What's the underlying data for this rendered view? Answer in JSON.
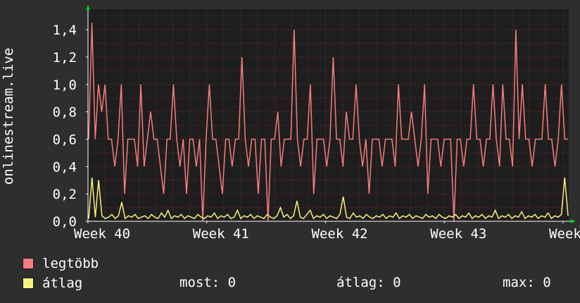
{
  "colors": {
    "background": "#2e2e2e",
    "plot_background": "#1e1e1e",
    "grid": "#7a2a2a",
    "axis_arrow": "#00cc00",
    "series_max": "#f47d7d",
    "series_avg": "#f4f47d"
  },
  "chart_data": {
    "type": "line",
    "title": "",
    "xlabel": "",
    "ylabel": "onlinestream.live",
    "ylim": [
      0,
      1.55
    ],
    "yticks": [
      "0,0",
      "0,2",
      "0,4",
      "0,6",
      "0,8",
      "1,0",
      "1,2",
      "1,4"
    ],
    "xticks": [
      "Week 40",
      "Week 41",
      "Week 42",
      "Week 43",
      "Week 44"
    ],
    "series": [
      {
        "name": "legtöbb",
        "color": "#f47d7d",
        "values": [
          0.6,
          1.45,
          0.6,
          1.0,
          0.8,
          1.0,
          0.6,
          0.6,
          0.4,
          0.6,
          1.0,
          0.2,
          0.6,
          0.6,
          0.6,
          0.4,
          1.0,
          0.4,
          0.6,
          0.8,
          0.6,
          0.6,
          0.4,
          0.2,
          0.6,
          0.6,
          1.0,
          0.6,
          0.4,
          0.6,
          0.2,
          0.6,
          0.6,
          0.4,
          0.6,
          0.0,
          0.6,
          1.0,
          0.6,
          0.6,
          0.4,
          0.2,
          0.6,
          0.6,
          0.4,
          0.6,
          0.6,
          1.2,
          0.6,
          0.4,
          0.6,
          0.6,
          0.2,
          0.6,
          0.6,
          0.0,
          0.6,
          0.6,
          0.8,
          0.4,
          0.6,
          0.6,
          0.6,
          1.4,
          0.6,
          0.4,
          0.6,
          0.6,
          1.0,
          0.2,
          0.6,
          0.6,
          0.6,
          0.4,
          0.6,
          1.2,
          0.6,
          0.6,
          0.4,
          0.8,
          0.6,
          0.6,
          1.0,
          0.6,
          0.4,
          0.6,
          0.2,
          0.6,
          0.6,
          0.6,
          0.4,
          0.6,
          0.6,
          0.6,
          0.4,
          1.0,
          0.6,
          0.6,
          0.6,
          0.8,
          0.6,
          0.4,
          0.6,
          1.0,
          0.2,
          0.6,
          0.6,
          0.6,
          0.4,
          0.6,
          0.6,
          0.6,
          0.0,
          0.6,
          0.6,
          0.4,
          0.6,
          0.6,
          1.0,
          0.6,
          0.6,
          0.4,
          0.6,
          0.6,
          1.0,
          0.6,
          0.4,
          1.0,
          0.6,
          0.6,
          0.4,
          1.4,
          0.6,
          1.0,
          0.6,
          0.6,
          0.4,
          0.6,
          0.6,
          0.6,
          1.0,
          0.6,
          0.6,
          0.4,
          0.6,
          1.0,
          0.6,
          0.6
        ]
      },
      {
        "name": "átlag",
        "color": "#f4f47d",
        "values": [
          0.02,
          0.32,
          0.03,
          0.3,
          0.04,
          0.02,
          0.03,
          0.05,
          0.02,
          0.04,
          0.14,
          0.02,
          0.04,
          0.03,
          0.05,
          0.02,
          0.03,
          0.04,
          0.02,
          0.05,
          0.03,
          0.02,
          0.06,
          0.03,
          0.08,
          0.02,
          0.04,
          0.03,
          0.05,
          0.02,
          0.04,
          0.03,
          0.02,
          0.05,
          0.03,
          0.02,
          0.04,
          0.03,
          0.06,
          0.02,
          0.04,
          0.03,
          0.05,
          0.02,
          0.03,
          0.08,
          0.02,
          0.04,
          0.03,
          0.05,
          0.02,
          0.04,
          0.03,
          0.02,
          0.05,
          0.03,
          0.02,
          0.04,
          0.1,
          0.03,
          0.05,
          0.02,
          0.04,
          0.15,
          0.03,
          0.02,
          0.05,
          0.08,
          0.02,
          0.04,
          0.03,
          0.05,
          0.02,
          0.04,
          0.03,
          0.02,
          0.05,
          0.18,
          0.03,
          0.02,
          0.06,
          0.03,
          0.04,
          0.02,
          0.05,
          0.03,
          0.02,
          0.04,
          0.03,
          0.05,
          0.02,
          0.04,
          0.03,
          0.06,
          0.02,
          0.04,
          0.03,
          0.05,
          0.02,
          0.04,
          0.03,
          0.02,
          0.05,
          0.03,
          0.04,
          0.02,
          0.05,
          0.03,
          0.02,
          0.04,
          0.03,
          0.05,
          0.02,
          0.04,
          0.03,
          0.06,
          0.02,
          0.04,
          0.03,
          0.05,
          0.02,
          0.04,
          0.03,
          0.08,
          0.02,
          0.04,
          0.03,
          0.05,
          0.02,
          0.04,
          0.03,
          0.07,
          0.02,
          0.04,
          0.03,
          0.05,
          0.02,
          0.04,
          0.03,
          0.06,
          0.02,
          0.04,
          0.03,
          0.05,
          0.32,
          0.04
        ]
      }
    ],
    "grid": true
  },
  "legend": {
    "items": [
      {
        "label": "legtöbb",
        "color": "#f47d7d"
      },
      {
        "label": "átlag",
        "color": "#f4f47d"
      }
    ]
  },
  "stats": {
    "current": "most: 0",
    "average": "átlag: 0",
    "max": "max: 0"
  }
}
